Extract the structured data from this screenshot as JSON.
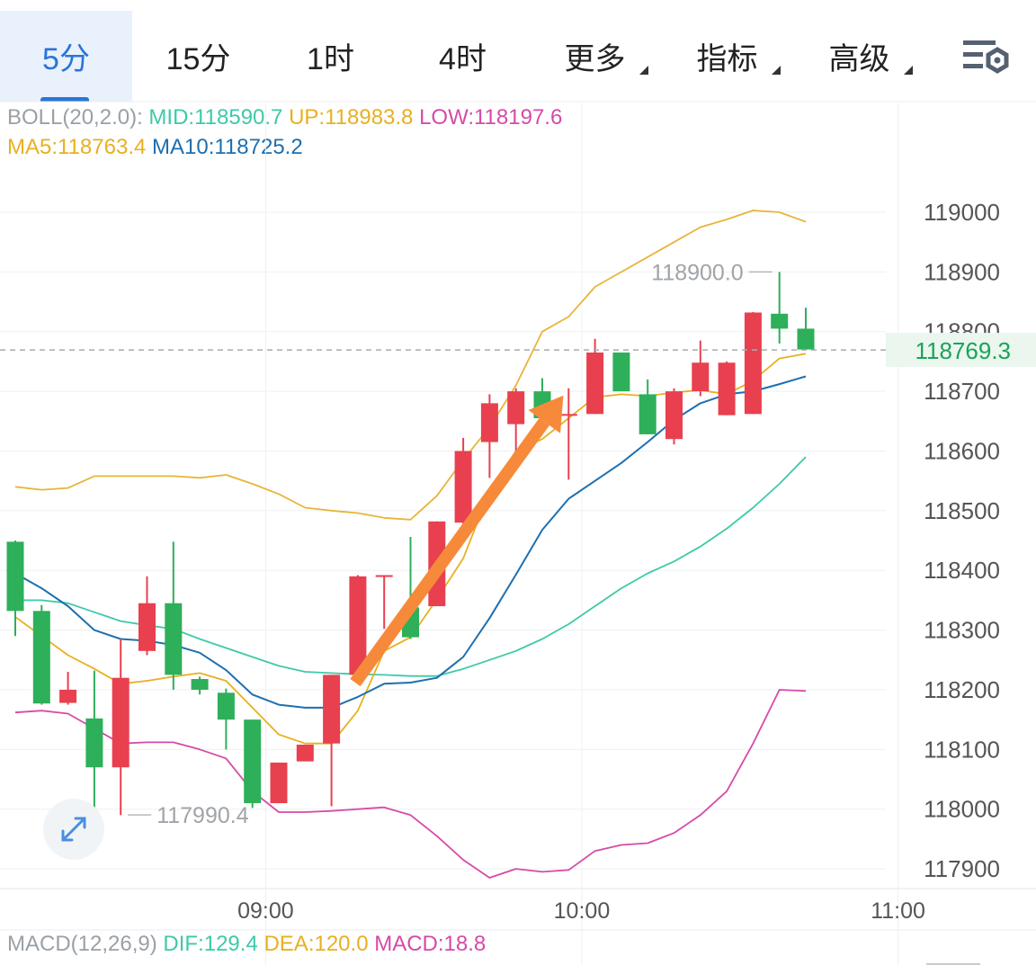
{
  "tabs": [
    {
      "label": "5分",
      "active": true,
      "dropdown": false
    },
    {
      "label": "15分",
      "active": false,
      "dropdown": false
    },
    {
      "label": "1时",
      "active": false,
      "dropdown": false
    },
    {
      "label": "4时",
      "active": false,
      "dropdown": false
    },
    {
      "label": "更多",
      "active": false,
      "dropdown": true
    },
    {
      "label": "指标",
      "active": false,
      "dropdown": true
    },
    {
      "label": "高级",
      "active": false,
      "dropdown": true
    }
  ],
  "settings_icon": "chart-settings-icon",
  "legend": {
    "boll": {
      "name": "BOLL(20,2.0):",
      "mid": "MID:118590.7",
      "up": "UP:118983.8",
      "low": "LOW:118197.6"
    },
    "ma": {
      "ma5": "MA5:118763.4",
      "ma10": "MA10:118725.2"
    }
  },
  "macd_legend": {
    "name": "MACD(12,26,9)",
    "dif": "DIF:129.4",
    "dea": "DEA:120.0",
    "macd": "MACD:18.8"
  },
  "colors": {
    "up": "#e8404f",
    "down": "#2eaf5a",
    "mid": "#3ec9a8",
    "up_band": "#e8b53a",
    "low_band": "#d64aa8",
    "ma5": "#e8b020",
    "ma10": "#1d6fb0",
    "arrow": "#f78a3a",
    "accent": "#2a74d8",
    "price_tag": "#1aa35a"
  },
  "chart_data": {
    "type": "candlestick",
    "ylim": [
      117850,
      119080
    ],
    "yticks": [
      119000,
      118900,
      118800,
      118700,
      118600,
      118500,
      118400,
      118300,
      118200,
      118100,
      118000,
      117900
    ],
    "x_labels": [
      "09:00",
      "10:00",
      "11:00"
    ],
    "x_label_bars": [
      9.5,
      21.5,
      33.5
    ],
    "current_price": 118769.3,
    "current_price_label": "118769.3",
    "high_marker": {
      "value": 118900.0,
      "label": "118900.0",
      "bar": 29
    },
    "low_marker": {
      "value": 117990.4,
      "label": "117990.4",
      "bar": 4
    },
    "candles": [
      [
        118448,
        118450,
        118290,
        118332
      ],
      [
        118332,
        118342,
        118175,
        118177
      ],
      [
        118178,
        118230,
        118175,
        118200
      ],
      [
        118152,
        118232,
        118002,
        118070
      ],
      [
        118070,
        118285,
        117990,
        118220
      ],
      [
        118265,
        118390,
        118258,
        118345
      ],
      [
        118345,
        118448,
        118200,
        118225
      ],
      [
        118218,
        118222,
        118192,
        118200
      ],
      [
        118195,
        118202,
        118100,
        118150
      ],
      [
        118150,
        118150,
        118002,
        118010
      ],
      [
        118010,
        118078,
        118010,
        118078
      ],
      [
        118080,
        118108,
        118080,
        118108
      ],
      [
        118110,
        118225,
        118005,
        118225
      ],
      [
        118225,
        118392,
        118222,
        118390
      ],
      [
        118392,
        118392,
        118302,
        118392
      ],
      [
        118338,
        118456,
        118285,
        118288
      ],
      [
        118340,
        118482,
        118340,
        118482
      ],
      [
        118480,
        118622,
        118455,
        118600
      ],
      [
        118615,
        118695,
        118555,
        118680
      ],
      [
        118645,
        118705,
        118572,
        118700
      ],
      [
        118700,
        118722,
        118655,
        118655
      ],
      [
        118662,
        118705,
        118552,
        118662
      ],
      [
        118662,
        118788,
        118662,
        118765
      ],
      [
        118765,
        118765,
        118700,
        118700
      ],
      [
        118695,
        118720,
        118628,
        118628
      ],
      [
        118620,
        118705,
        118611,
        118700
      ],
      [
        118700,
        118785,
        118692,
        118748
      ],
      [
        118660,
        118750,
        118660,
        118748
      ],
      [
        118662,
        118833,
        118662,
        118832
      ],
      [
        118830,
        118900,
        118780,
        118805
      ],
      [
        118805,
        118840,
        118770,
        118770
      ]
    ],
    "boll_mid": [
      118350,
      118350,
      118345,
      118330,
      118315,
      118308,
      118302,
      118285,
      118270,
      118255,
      118240,
      118230,
      118228,
      118226,
      118225,
      118223,
      118223,
      118235,
      118250,
      118265,
      118285,
      118310,
      118340,
      118370,
      118395,
      118415,
      118440,
      118470,
      118505,
      118545,
      118590
    ],
    "boll_up": [
      118540,
      118535,
      118538,
      118558,
      118558,
      118558,
      118558,
      118555,
      118560,
      118545,
      118528,
      118505,
      118500,
      118496,
      118488,
      118485,
      118525,
      118585,
      118640,
      118710,
      118800,
      118825,
      118875,
      118900,
      118925,
      118950,
      118975,
      118988,
      119003,
      119000,
      118984
    ],
    "boll_low": [
      118162,
      118165,
      118160,
      118135,
      118110,
      118112,
      118112,
      118100,
      118085,
      118030,
      117995,
      117995,
      117997,
      118000,
      118003,
      117990,
      117955,
      117915,
      117885,
      117900,
      117895,
      117898,
      117930,
      117940,
      117943,
      117960,
      117990,
      118030,
      118110,
      118200,
      118198
    ],
    "ma5": [
      118322,
      118290,
      118258,
      118235,
      118210,
      118215,
      118222,
      118228,
      118215,
      118170,
      118125,
      118110,
      118110,
      118165,
      118265,
      118288,
      118352,
      118420,
      118532,
      118600,
      118620,
      118655,
      118690,
      118695,
      118692,
      118698,
      118702,
      118695,
      118718,
      118755,
      118763
    ],
    "ma10": [
      118395,
      118370,
      118340,
      118300,
      118285,
      118282,
      118275,
      118262,
      118233,
      118192,
      118175,
      118170,
      118170,
      118188,
      118210,
      118212,
      118220,
      118255,
      118320,
      118393,
      118468,
      118520,
      118550,
      118580,
      118615,
      118652,
      118680,
      118695,
      118700,
      118712,
      118725
    ],
    "trend_arrow": {
      "from": [
        12.9,
        118212
      ],
      "to": [
        20.8,
        118693
      ]
    }
  }
}
